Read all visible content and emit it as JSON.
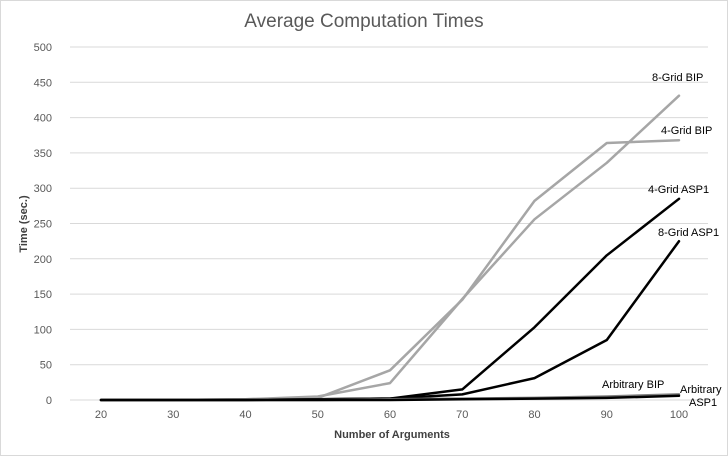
{
  "chart_data": {
    "type": "line",
    "title": "Average Computation Times",
    "xlabel": "Number of Arguments",
    "ylabel": "Time (sec.)",
    "x": [
      20,
      30,
      40,
      50,
      60,
      70,
      80,
      90,
      100
    ],
    "xlim": [
      20,
      100
    ],
    "ylim": [
      0,
      500
    ],
    "yticks": [
      0,
      50,
      100,
      150,
      200,
      250,
      300,
      350,
      400,
      450,
      500
    ],
    "xticks": [
      20,
      30,
      40,
      50,
      60,
      70,
      80,
      90,
      100
    ],
    "grid": true,
    "legend": "inline-labels",
    "series": [
      {
        "name": "8-Grid BIP",
        "color": "#a6a6a6",
        "values": [
          0,
          0,
          1,
          5,
          24,
          143,
          256,
          336,
          431
        ],
        "label": [
          "8-Grid",
          "BIP"
        ]
      },
      {
        "name": "4-Grid BIP",
        "color": "#a6a6a6",
        "values": [
          0,
          0,
          1,
          3,
          42,
          142,
          282,
          364,
          368
        ],
        "label": [
          "4-Grid",
          "BIP"
        ]
      },
      {
        "name": "4-Grid ASP1",
        "color": "#000000",
        "values": [
          0,
          0,
          0,
          1,
          2,
          15,
          103,
          205,
          285
        ],
        "label": [
          "4-Grid",
          "ASP1"
        ]
      },
      {
        "name": "8-Grid ASP1",
        "color": "#000000",
        "values": [
          0,
          0,
          0,
          1,
          2,
          8,
          31,
          85,
          225
        ],
        "label": [
          "8-Grid",
          "ASP1"
        ]
      },
      {
        "name": "Arbitrary BIP",
        "color": "#808080",
        "values": [
          0,
          0,
          0,
          0,
          1,
          2,
          3,
          5,
          8
        ],
        "label": [
          "Arbitrary",
          "BIP"
        ]
      },
      {
        "name": "Arbitrary ASP1",
        "color": "#000000",
        "values": [
          0,
          0,
          0,
          0,
          0,
          1,
          2,
          3,
          6
        ],
        "label": [
          "Arbitrary",
          "ASP1"
        ]
      }
    ]
  }
}
